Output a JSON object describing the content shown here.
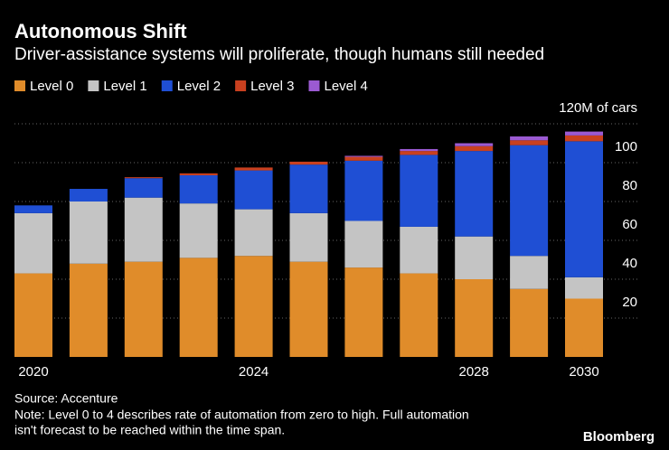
{
  "chart_data": {
    "type": "stacked-bar",
    "title": "Autonomous Shift",
    "subtitle": "Driver-assistance systems will proliferate, though humans still needed",
    "categories": [
      "2020",
      null,
      null,
      null,
      "2024",
      null,
      null,
      null,
      "2028",
      null,
      "2030"
    ],
    "series": [
      {
        "name": "Level 0",
        "color": "#e08c2a",
        "values": [
          43,
          48,
          49,
          51,
          52,
          49,
          46,
          43,
          40,
          35,
          30
        ]
      },
      {
        "name": "Level 1",
        "color": "#c4c4c4",
        "values": [
          31,
          32,
          33,
          28,
          24,
          25,
          24,
          24,
          22,
          17,
          11
        ]
      },
      {
        "name": "Level 2",
        "color": "#1f4fd4",
        "values": [
          4,
          6.5,
          10,
          14.5,
          20,
          25,
          31,
          37,
          44,
          57,
          70
        ]
      },
      {
        "name": "Level 3",
        "color": "#c9401f",
        "values": [
          0,
          0,
          0.5,
          1,
          1.5,
          1.5,
          2,
          2,
          2.5,
          2.5,
          3
        ]
      },
      {
        "name": "Level 4",
        "color": "#9b5ad2",
        "values": [
          0,
          0,
          0,
          0,
          0,
          0,
          0.5,
          1,
          1.5,
          2,
          2
        ]
      }
    ],
    "ylim": [
      0,
      120
    ],
    "yticks": [
      20,
      40,
      60,
      80,
      100,
      {
        "value": 120,
        "label": "120M of cars"
      }
    ],
    "grid": true,
    "source": "Source: Accenture",
    "note": [
      "Note: Level 0 to 4 describes rate of automation from zero to high. Full automation",
      "isn't forecast to be reached within the time span."
    ],
    "brand": "Bloomberg"
  }
}
